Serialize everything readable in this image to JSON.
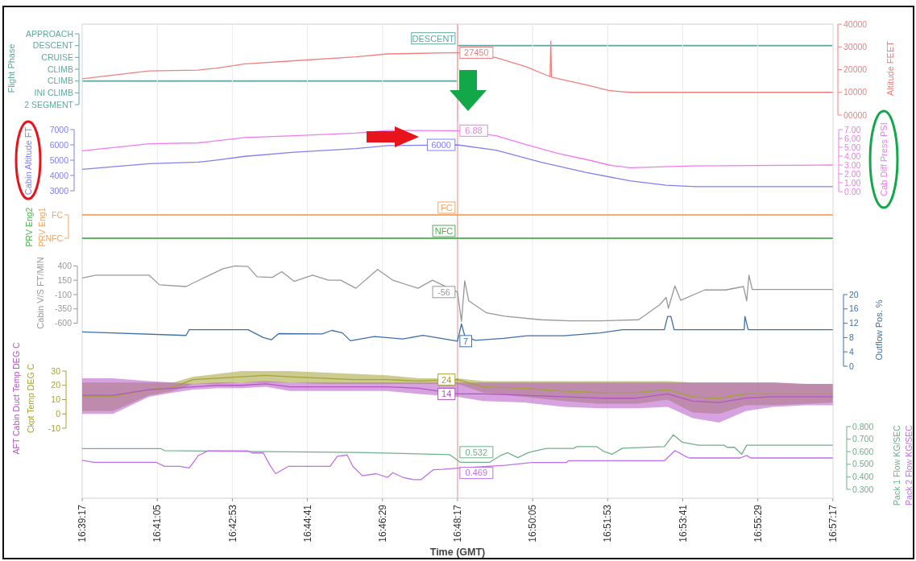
{
  "chart_data": [
    {
      "type": "bar",
      "orientation": "horizontal",
      "xlim": [
        16.6547,
        16.9548
      ],
      "xticks": [
        {
          "value": 16.654722,
          "label": null
        },
        {
          "value": 16.684722,
          "label": null
        },
        {
          "value": 16.714722,
          "label": null
        },
        {
          "value": 16.744722,
          "label": null
        },
        {
          "value": 16.774722,
          "label": null
        },
        {
          "value": 16.804722,
          "label": null
        },
        {
          "value": 16.834722,
          "label": null
        },
        {
          "value": 16.864722,
          "label": null
        },
        {
          "value": 16.894722,
          "label": null
        },
        {
          "value": 16.924722,
          "label": null
        },
        {
          "value": 16.954722,
          "label": null
        }
      ],
      "categories": [
        "APPROACH",
        "DESCENT",
        "CRUISE",
        "CLIMB",
        "CLIMB",
        "INI CLIMB",
        "2 SEGMENT"
      ],
      "values": [
        null,
        0.15,
        null,
        null,
        0.1497,
        null,
        null
      ],
      "base": [
        null,
        16.8047,
        null,
        null,
        16.6547,
        null,
        null
      ],
      "color": "#5fa8a0",
      "value_labels": [
        null,
        "DESCENT",
        null,
        null,
        null,
        null,
        null
      ],
      "ylabel": "Flight Phase",
      "grid": "x",
      "tick_labels": "y",
      "ref_lines": [
        {
          "axis": "x",
          "value": 16.804722,
          "color": "#f7a0a0"
        }
      ]
    },
    {
      "type": "line",
      "xlim": [
        16.6547,
        16.9548
      ],
      "xticks": [
        {
          "value": 16.654722,
          "label": null
        },
        {
          "value": 16.684722,
          "label": null
        },
        {
          "value": 16.714722,
          "label": null
        },
        {
          "value": 16.744722,
          "label": null
        },
        {
          "value": 16.774722,
          "label": null
        },
        {
          "value": 16.804722,
          "label": null
        },
        {
          "value": 16.834722,
          "label": null
        },
        {
          "value": 16.864722,
          "label": null
        },
        {
          "value": 16.894722,
          "label": null
        },
        {
          "value": 16.924722,
          "label": null
        },
        {
          "value": 16.954722,
          "label": null
        }
      ],
      "y2lim": [
        0,
        40000
      ],
      "y2ticks": [
        {
          "value": 0,
          "label": "00000"
        },
        10000,
        20000,
        30000,
        40000
      ],
      "y2label": "Altitude FEET",
      "grid": "x",
      "tick_labels": "y",
      "ref_lines": [
        {
          "axis": "x",
          "value": 16.804722,
          "color": "#f7a0a0"
        }
      ],
      "series": [
        {
          "color": "#f08080",
          "axis": "y2",
          "x": [
            16.6547,
            16.6814,
            16.7011,
            16.7085,
            16.7197,
            16.7394,
            16.7641,
            16.7767,
            16.8047,
            16.8202,
            16.8321,
            16.8417,
            16.842,
            16.8423,
            16.8581,
            16.8652,
            16.8736,
            16.9547
          ],
          "values": [
            16000,
            19400,
            19800,
            20700,
            22500,
            23900,
            25600,
            26900,
            27450,
            25300,
            21300,
            16900,
            32500,
            16700,
            12800,
            10800,
            10000,
            10000
          ],
          "value_labels": [
            null,
            null,
            null,
            null,
            null,
            null,
            null,
            null,
            "27450",
            null,
            null,
            null,
            null,
            null,
            null,
            null,
            null,
            null
          ]
        }
      ]
    },
    {
      "type": "line",
      "xlim": [
        16.6547,
        16.9548
      ],
      "xticks": [
        {
          "value": 16.654722,
          "label": null
        },
        {
          "value": 16.684722,
          "label": null
        },
        {
          "value": 16.714722,
          "label": null
        },
        {
          "value": 16.744722,
          "label": null
        },
        {
          "value": 16.774722,
          "label": null
        },
        {
          "value": 16.804722,
          "label": null
        },
        {
          "value": 16.834722,
          "label": null
        },
        {
          "value": 16.864722,
          "label": null
        },
        {
          "value": 16.894722,
          "label": null
        },
        {
          "value": 16.924722,
          "label": null
        },
        {
          "value": 16.954722,
          "label": null
        }
      ],
      "ylim": [
        3000,
        7000
      ],
      "yticks": [
        3000,
        4000,
        5000,
        6000,
        7000
      ],
      "y2lim": [
        0,
        7
      ],
      "y2ticks": [
        {
          "value": 0,
          "label": "0.00"
        },
        {
          "value": 1,
          "label": "1.00"
        },
        {
          "value": 2,
          "label": "2.00"
        },
        {
          "value": 3,
          "label": "3.00"
        },
        {
          "value": 4,
          "label": "4.00"
        },
        {
          "value": 5,
          "label": "5.00"
        },
        {
          "value": 6,
          "label": "6.00"
        },
        {
          "value": 7,
          "label": "7.00"
        }
      ],
      "ylabel": "Cabin Altitude FT",
      "y2label": "Cab Diff Press PSI",
      "grid": "x",
      "tick_labels": "y",
      "ref_lines": [
        {
          "axis": "x",
          "value": 16.804722,
          "color": "#f7a0a0"
        }
      ],
      "series": [
        {
          "color": "#8080f0",
          "x": [
            16.6547,
            16.6814,
            16.7011,
            16.7085,
            16.7197,
            16.7394,
            16.7641,
            16.7767,
            16.8047,
            16.8202,
            16.8379,
            16.8559,
            16.8736,
            16.8881,
            16.9,
            16.9547
          ],
          "values": [
            4400,
            4770,
            4870,
            5010,
            5250,
            5520,
            5760,
            5950,
            6000,
            5650,
            4870,
            4200,
            3650,
            3360,
            3270,
            3270
          ],
          "value_labels": [
            null,
            null,
            null,
            null,
            null,
            null,
            null,
            null,
            "6000",
            null,
            null,
            null,
            null,
            null,
            null,
            null
          ]
        },
        {
          "color": "#f07af0",
          "axis": "y2",
          "x": [
            16.6547,
            16.6814,
            16.7011,
            16.7197,
            16.7394,
            16.7641,
            16.7767,
            16.8047,
            16.8202,
            16.8321,
            16.8449,
            16.8581,
            16.8652,
            16.8736,
            16.8987,
            16.9547
          ],
          "values": [
            4.6,
            5.4,
            5.5,
            6.1,
            6.3,
            6.6,
            6.9,
            6.88,
            6.3,
            5.3,
            4.3,
            3.5,
            3.0,
            2.7,
            2.9,
            3.0
          ],
          "value_labels": [
            null,
            null,
            null,
            null,
            null,
            null,
            null,
            "6.88",
            null,
            null,
            null,
            null,
            null,
            null,
            null,
            null
          ]
        }
      ]
    },
    {
      "type": "bar",
      "orientation": "horizontal",
      "xlim": [
        16.6547,
        16.9548
      ],
      "xticks": [
        {
          "value": 16.654722,
          "label": null
        },
        {
          "value": 16.684722,
          "label": null
        },
        {
          "value": 16.714722,
          "label": null
        },
        {
          "value": 16.744722,
          "label": null
        },
        {
          "value": 16.774722,
          "label": null
        },
        {
          "value": 16.804722,
          "label": null
        },
        {
          "value": 16.834722,
          "label": null
        },
        {
          "value": 16.864722,
          "label": null
        },
        {
          "value": 16.894722,
          "label": null
        },
        {
          "value": 16.924722,
          "label": null
        },
        {
          "value": 16.954722,
          "label": null
        }
      ],
      "categories": [
        "FC",
        "NFC"
      ],
      "grid": "x",
      "tick_labels": "y",
      "ref_lines": [
        {
          "axis": "x",
          "value": 16.804722,
          "color": "#f7a0a0"
        }
      ],
      "series": [
        {
          "name": "PRV Eng1",
          "color": "#f4a460",
          "values": [
            0.3,
            null
          ],
          "base": [
            16.6547,
            null
          ],
          "value_labels": [
            "FC",
            null
          ]
        },
        {
          "name": "PRV Eng2",
          "color": "#4caf50",
          "values": [
            null,
            0.3
          ],
          "base": [
            null,
            16.6547
          ],
          "value_labels": [
            null,
            "NFC"
          ]
        }
      ]
    },
    {
      "type": "line",
      "xlim": [
        16.6547,
        16.9548
      ],
      "xticks": [
        {
          "value": 16.654722,
          "label": null
        },
        {
          "value": 16.684722,
          "label": null
        },
        {
          "value": 16.714722,
          "label": null
        },
        {
          "value": 16.744722,
          "label": null
        },
        {
          "value": 16.774722,
          "label": null
        },
        {
          "value": 16.804722,
          "label": null
        },
        {
          "value": 16.834722,
          "label": null
        },
        {
          "value": 16.864722,
          "label": null
        },
        {
          "value": 16.894722,
          "label": null
        },
        {
          "value": 16.924722,
          "label": null
        },
        {
          "value": 16.954722,
          "label": null
        }
      ],
      "ylim": [
        -600,
        400
      ],
      "yticks": [
        -600,
        -350,
        -100,
        150,
        400
      ],
      "y2lim": [
        0,
        20
      ],
      "y2ticks": [
        0,
        4,
        8,
        12,
        16,
        20
      ],
      "ylabel": "Cabin V/S FT/MIN",
      "y2label": "Outflow Pos. %",
      "grid": "x",
      "tick_labels": "y",
      "ref_lines": [
        {
          "axis": "x",
          "value": 16.804722,
          "color": "#f7a0a0"
        }
      ],
      "series": [
        {
          "color": "#999999",
          "x": [
            16.6547,
            16.6602,
            16.6814,
            16.6856,
            16.6962,
            16.7023,
            16.711,
            16.7159,
            16.721,
            16.7246,
            16.7307,
            16.7345,
            16.7394,
            16.7468,
            16.7532,
            16.758,
            16.7641,
            16.7728,
            16.7789,
            16.7889,
            16.7947,
            16.8047,
            16.8063,
            16.8076,
            16.8092,
            16.8163,
            16.8237,
            16.8379,
            16.8498,
            16.8617,
            16.8771,
            16.8855,
            16.8881,
            16.889,
            16.8916,
            16.8939,
            16.9035,
            16.9119,
            16.919,
            16.9203,
            16.9212,
            16.9225,
            16.9547
          ],
          "values": [
            190,
            240,
            240,
            70,
            40,
            170,
            350,
            400,
            390,
            210,
            200,
            300,
            130,
            240,
            150,
            150,
            10,
            340,
            150,
            10,
            150,
            -56,
            -570,
            140,
            -210,
            -420,
            -480,
            -540,
            -560,
            -560,
            -540,
            -280,
            -150,
            -340,
            50,
            -200,
            -20,
            -20,
            40,
            -210,
            240,
            -10,
            -10
          ],
          "value_labels": [
            null,
            null,
            null,
            null,
            null,
            null,
            null,
            null,
            null,
            null,
            null,
            null,
            null,
            null,
            null,
            null,
            null,
            null,
            null,
            null,
            null,
            "-56",
            null,
            null,
            null,
            null,
            null,
            null,
            null,
            null,
            null,
            null,
            null,
            null,
            null,
            null,
            null,
            null,
            null,
            null,
            null,
            null,
            null
          ]
        },
        {
          "color": "#3f6fa8",
          "axis": "y2",
          "x": [
            16.6547,
            16.6962,
            16.6975,
            16.721,
            16.7271,
            16.7304,
            16.7332,
            16.7506,
            16.7545,
            16.7587,
            16.7619,
            16.7715,
            16.7828,
            16.7909,
            16.8047,
            16.8063,
            16.8076,
            16.8118,
            16.8231,
            16.8327,
            16.8472,
            16.8617,
            16.8707,
            16.8874,
            16.8887,
            16.89,
            16.8913,
            16.9193,
            16.9196,
            16.9209,
            16.9547
          ],
          "values": [
            9.6,
            8.6,
            10.2,
            10.2,
            8.0,
            7.4,
            9.1,
            9.0,
            10.0,
            9.3,
            7.1,
            8.3,
            7.6,
            8.6,
            7,
            11.8,
            8.5,
            7.2,
            7.8,
            8.5,
            8.5,
            9.3,
            10.2,
            10.2,
            13.9,
            13.9,
            10.2,
            10.2,
            13.9,
            10.2,
            10.2
          ],
          "value_labels": [
            null,
            null,
            null,
            null,
            null,
            null,
            null,
            null,
            null,
            null,
            null,
            null,
            null,
            null,
            "7",
            null,
            null,
            null,
            null,
            null,
            null,
            null,
            null,
            null,
            null,
            null,
            null,
            null,
            null,
            null,
            null
          ]
        }
      ]
    },
    {
      "type": "line",
      "xlim": [
        16.6547,
        16.9548
      ],
      "xticks": [
        {
          "value": 16.654722,
          "label": null
        },
        {
          "value": 16.684722,
          "label": null
        },
        {
          "value": 16.714722,
          "label": null
        },
        {
          "value": 16.744722,
          "label": null
        },
        {
          "value": 16.774722,
          "label": null
        },
        {
          "value": 16.804722,
          "label": null
        },
        {
          "value": 16.834722,
          "label": null
        },
        {
          "value": 16.864722,
          "label": null
        },
        {
          "value": 16.894722,
          "label": null
        },
        {
          "value": 16.924722,
          "label": null
        },
        {
          "value": 16.954722,
          "label": null
        }
      ],
      "ylim": [
        -10,
        30
      ],
      "yticks": [
        -10,
        0,
        10,
        20,
        30
      ],
      "grid": "x",
      "tick_labels": "y",
      "ref_lines": [
        {
          "axis": "x",
          "value": 16.804722,
          "color": "#f7a0a0"
        }
      ],
      "series": [
        {
          "name": "Ckpt Temp DEG C",
          "color": "#a3a336",
          "x": [
            16.6547,
            16.667,
            16.6814,
            16.6911,
            16.6991,
            16.7088,
            16.7184,
            16.7281,
            16.7378,
            16.7506,
            16.7635,
            16.7764,
            16.7892,
            16.8047,
            16.815,
            16.8311,
            16.8472,
            16.8617,
            16.8762,
            16.8887,
            16.8987,
            16.9093,
            16.9199,
            16.9309,
            16.9437,
            16.9547
          ],
          "values": [
            12,
            12,
            17,
            19,
            24,
            25,
            26,
            27,
            26,
            25,
            24,
            24,
            23,
            24,
            19,
            18,
            16,
            15,
            15,
            17,
            12,
            11,
            14,
            14,
            14,
            14
          ],
          "lower": [
            2,
            2,
            13,
            16,
            21,
            21,
            22,
            22,
            22,
            21,
            21,
            21,
            21,
            21,
            15,
            12,
            9,
            7,
            7,
            10,
            1,
            0,
            6,
            6,
            7,
            8
          ],
          "upper": [
            22,
            22,
            22,
            22,
            26,
            28,
            30,
            30,
            30,
            29,
            28,
            27,
            25,
            25,
            23,
            23,
            23,
            23,
            23,
            23,
            22,
            22,
            22,
            22,
            21,
            21
          ],
          "value_labels": [
            null,
            null,
            null,
            null,
            null,
            null,
            null,
            null,
            null,
            null,
            null,
            null,
            null,
            "24",
            null,
            null,
            null,
            null,
            null,
            null,
            null,
            null,
            null,
            null,
            null,
            null
          ]
        },
        {
          "name": "AFT Cabin Duct Temp DEG C",
          "color": "#b455c4",
          "x": [
            16.6547,
            16.667,
            16.6814,
            16.6911,
            16.6991,
            16.7088,
            16.7184,
            16.7281,
            16.7378,
            16.7506,
            16.7635,
            16.7764,
            16.7892,
            16.8047,
            16.815,
            16.8311,
            16.8472,
            16.8617,
            16.8762,
            16.8887,
            16.8987,
            16.9093,
            16.9199,
            16.9309,
            16.9437,
            16.9547
          ],
          "values": [
            13,
            13,
            17,
            18,
            19,
            20,
            20,
            21,
            19,
            19,
            19,
            19,
            18,
            14,
            14,
            13,
            12,
            11,
            11,
            14,
            9,
            8,
            11,
            12,
            12,
            12
          ],
          "lower": [
            0,
            0,
            12,
            15,
            17,
            18,
            18,
            19,
            16,
            16,
            16,
            16,
            14,
            12,
            9,
            8,
            5,
            4,
            4,
            5,
            -3,
            -6,
            2,
            5,
            6,
            6
          ],
          "upper": [
            25,
            25,
            23,
            22,
            21,
            22,
            22,
            23,
            22,
            22,
            22,
            22,
            22,
            22,
            22,
            22,
            22,
            22,
            22,
            22,
            22,
            22,
            22,
            22,
            21,
            21
          ],
          "value_labels": [
            null,
            null,
            null,
            null,
            null,
            null,
            null,
            null,
            null,
            null,
            null,
            null,
            null,
            "14",
            null,
            null,
            null,
            null,
            null,
            null,
            null,
            null,
            null,
            null,
            null,
            null
          ]
        }
      ]
    },
    {
      "type": "line",
      "xlim": [
        16.6547,
        16.9548
      ],
      "xticks": [
        {
          "value": 16.654722,
          "label": "16:39:17"
        },
        {
          "value": 16.684722,
          "label": "16:41:05"
        },
        {
          "value": 16.714722,
          "label": "16:42:53"
        },
        {
          "value": 16.744722,
          "label": "16:44:41"
        },
        {
          "value": 16.774722,
          "label": "16:46:29"
        },
        {
          "value": 16.804722,
          "label": "16:48:17"
        },
        {
          "value": 16.834722,
          "label": "16:50:05"
        },
        {
          "value": 16.864722,
          "label": "16:51:53"
        },
        {
          "value": 16.894722,
          "label": "16:53:41"
        },
        {
          "value": 16.924722,
          "label": "16:55:29"
        },
        {
          "value": 16.954722,
          "label": "16:57:17"
        }
      ],
      "y2lim": [
        0.3,
        0.8
      ],
      "y2ticks": [
        {
          "value": 0.3,
          "label": "0.300"
        },
        {
          "value": 0.4,
          "label": "0.400"
        },
        {
          "value": 0.5,
          "label": "0.500"
        },
        {
          "value": 0.6,
          "label": "0.600"
        },
        {
          "value": 0.7,
          "label": "0.700"
        },
        {
          "value": 0.8,
          "label": "0.800"
        }
      ],
      "xlabel": "Time (GMT)",
      "grid": "x",
      "ref_lines": [
        {
          "axis": "x",
          "value": 16.804722,
          "color": "#f7a0a0"
        }
      ],
      "series": [
        {
          "name": "Pack 1 Flow KG/SEC",
          "color": "#6fb08a",
          "axis": "y2",
          "x": [
            16.6547,
            16.6862,
            16.6876,
            16.7648,
            16.8015,
            16.8047,
            16.8057,
            16.8176,
            16.8218,
            16.8247,
            16.8288,
            16.833,
            16.8362,
            16.8404,
            16.8511,
            16.8524,
            16.8604,
            16.863,
            16.8665,
            16.8707,
            16.8874,
            16.891,
            16.8945,
            16.9009,
            16.9112,
            16.9125,
            16.9154,
            16.9183,
            16.9203,
            16.9547
          ],
          "values": [
            0.624,
            0.624,
            0.609,
            0.594,
            0.577,
            0.532,
            0.516,
            0.516,
            0.568,
            0.592,
            0.552,
            0.592,
            0.609,
            0.626,
            0.626,
            0.64,
            0.64,
            0.604,
            0.58,
            0.628,
            0.64,
            0.735,
            0.676,
            0.652,
            0.652,
            0.635,
            0.635,
            0.58,
            0.652,
            0.652
          ],
          "value_labels": [
            null,
            null,
            null,
            null,
            null,
            "0.532",
            null,
            null,
            null,
            null,
            null,
            null,
            null,
            null,
            null,
            null,
            null,
            null,
            null,
            null,
            null,
            null,
            null,
            null,
            null,
            null,
            null,
            null,
            null,
            null
          ]
        },
        {
          "name": "Pack 2 Flow KG/SEC",
          "color": "#c070e8",
          "axis": "y2",
          "x": [
            16.6547,
            16.6595,
            16.6843,
            16.6876,
            16.6937,
            16.6975,
            16.7011,
            16.7049,
            16.721,
            16.7226,
            16.7271,
            16.7297,
            16.732,
            16.7371,
            16.7538,
            16.7567,
            16.7606,
            16.7629,
            16.7667,
            16.7722,
            16.7767,
            16.7789,
            16.7828,
            16.787,
            16.7902,
            16.795,
            16.7989,
            16.8047,
            16.8237,
            16.8343,
            16.8482,
            16.8491,
            16.8874,
            16.8916,
            16.8964,
            16.8974,
            16.9177,
            16.9203,
            16.9219,
            16.9547
          ],
          "values": [
            0.532,
            0.515,
            0.515,
            0.483,
            0.483,
            0.47,
            0.569,
            0.606,
            0.606,
            0.59,
            0.59,
            0.495,
            0.425,
            0.483,
            0.483,
            0.564,
            0.574,
            0.483,
            0.408,
            0.425,
            0.396,
            0.433,
            0.396,
            0.378,
            0.378,
            0.456,
            0.46,
            0.469,
            0.492,
            0.514,
            0.514,
            0.528,
            0.528,
            0.609,
            0.557,
            0.55,
            0.55,
            0.57,
            0.55,
            0.55
          ],
          "value_labels": [
            null,
            null,
            null,
            null,
            null,
            null,
            null,
            null,
            null,
            null,
            null,
            null,
            null,
            null,
            null,
            null,
            null,
            null,
            null,
            null,
            null,
            null,
            null,
            null,
            null,
            null,
            null,
            "0.469",
            null,
            null,
            null,
            null,
            null,
            null,
            null,
            null,
            null,
            null,
            null,
            null
          ]
        }
      ]
    }
  ]
}
